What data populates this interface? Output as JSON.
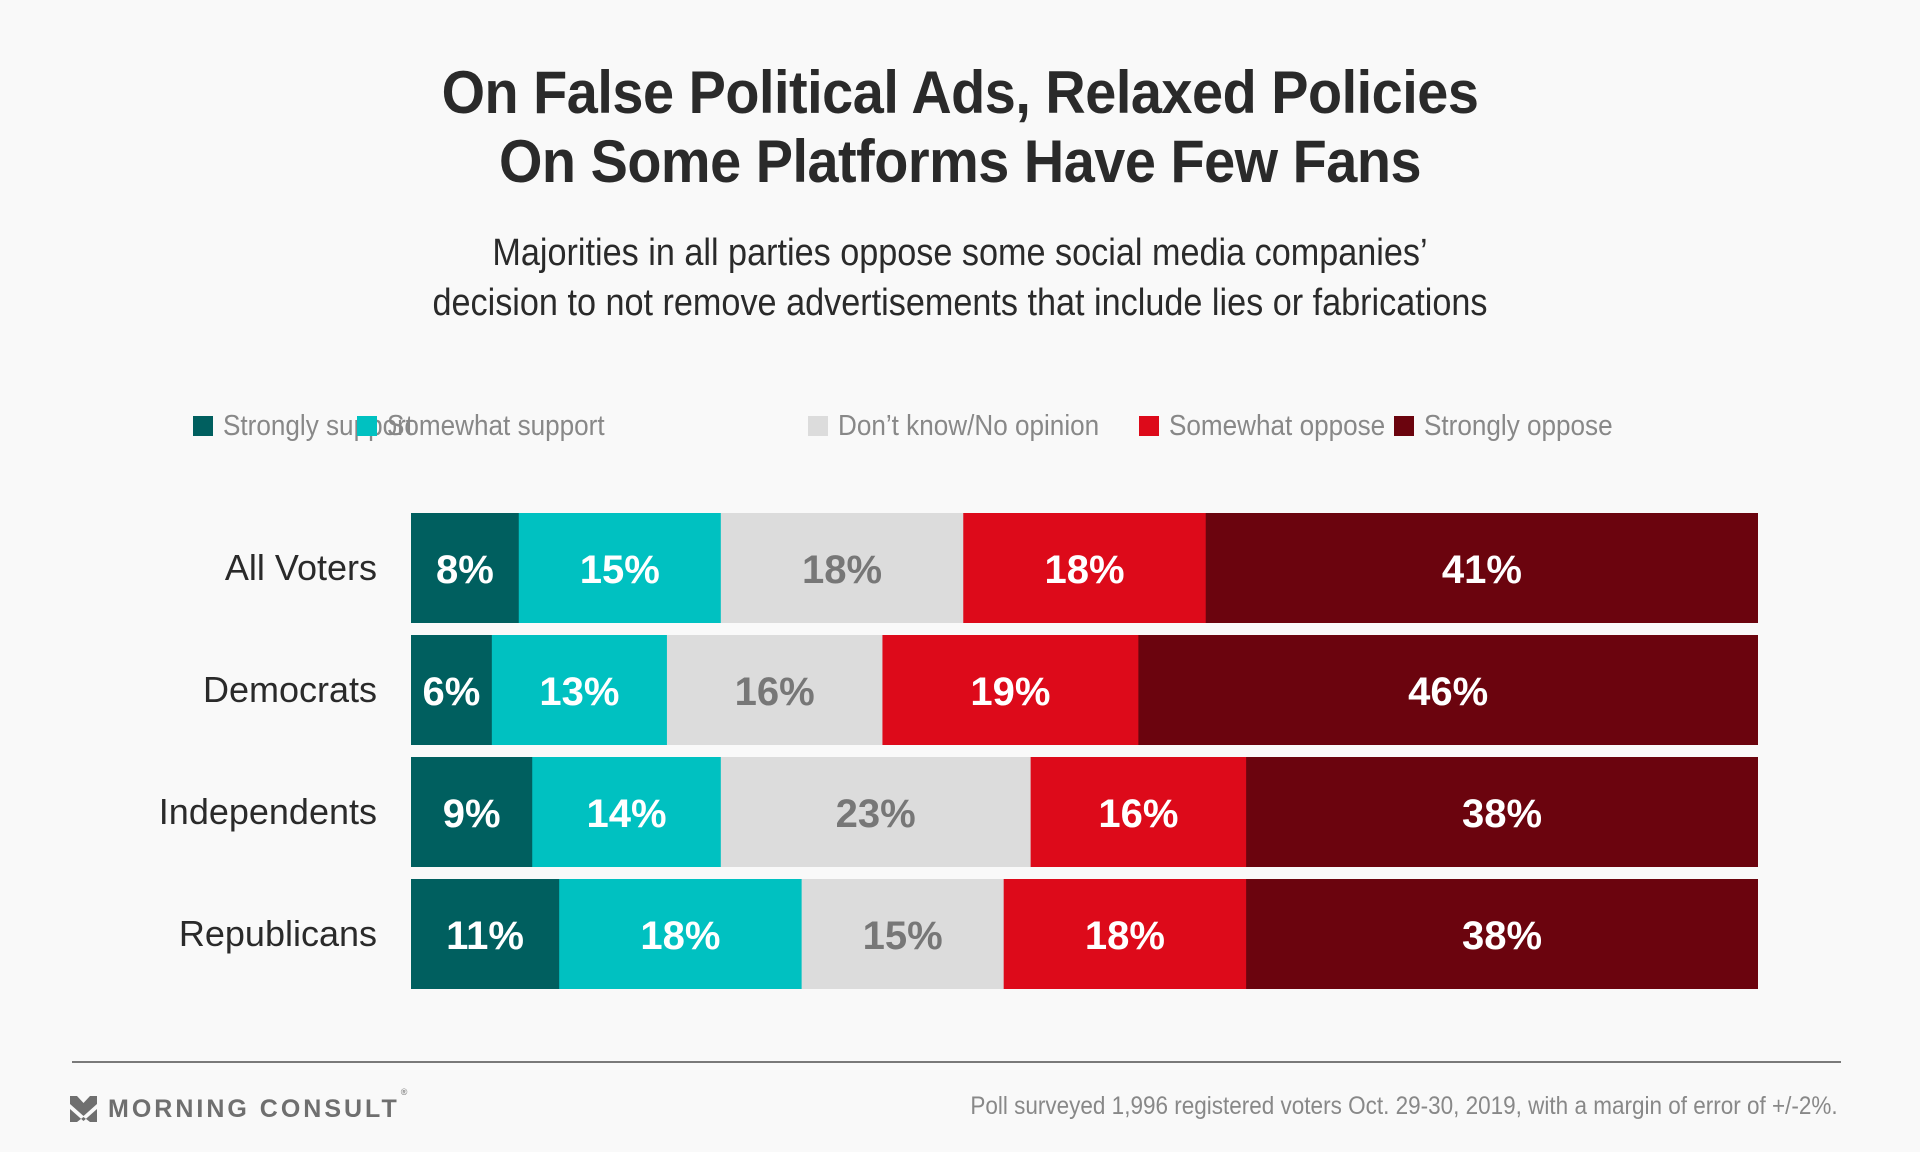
{
  "chart_data": {
    "type": "bar",
    "orientation": "horizontal",
    "stacked": true,
    "title": "On False Political Ads, Relaxed Policies On Some Platforms Have Few Fans",
    "title_lines": [
      "On False Political Ads, Relaxed Policies",
      "On Some Platforms Have Few Fans"
    ],
    "subtitle": "Majorities in all parties oppose some social media companies’ decision to not remove advertisements that include lies or fabrications",
    "subtitle_lines": [
      "Majorities in all parties oppose some social media companies’",
      "decision to not remove advertisements that include lies or fabrications"
    ],
    "xlabel": "",
    "ylabel": "",
    "xlim": [
      0,
      100
    ],
    "grid": false,
    "legend_position": "top",
    "categories": [
      "All Voters",
      "Democrats",
      "Independents",
      "Republicans"
    ],
    "series": [
      {
        "name": "Strongly support",
        "color": "#005f5f",
        "label_color": "#ffffff",
        "values": [
          8,
          6,
          9,
          11
        ]
      },
      {
        "name": "Somewhat support",
        "color": "#00c1c1",
        "label_color": "#ffffff",
        "values": [
          15,
          13,
          14,
          18
        ]
      },
      {
        "name": "Don’t know/No opinion",
        "color": "#dcdcdc",
        "label_color": "#777777",
        "values": [
          18,
          16,
          23,
          15
        ]
      },
      {
        "name": "Somewhat oppose",
        "color": "#dd0a1a",
        "label_color": "#ffffff",
        "values": [
          18,
          19,
          16,
          18
        ]
      },
      {
        "name": "Strongly oppose",
        "color": "#6b040e",
        "label_color": "#ffffff",
        "values": [
          41,
          46,
          38,
          38
        ]
      }
    ],
    "value_suffix": "%"
  },
  "footer": {
    "brand": "MORNING CONSULT",
    "brand_mark": "®",
    "logo_icon": "morning-consult-chevron-icon",
    "source": "Poll surveyed 1,996 registered voters Oct. 29-30, 2019, with a margin of error of +/-2%."
  }
}
